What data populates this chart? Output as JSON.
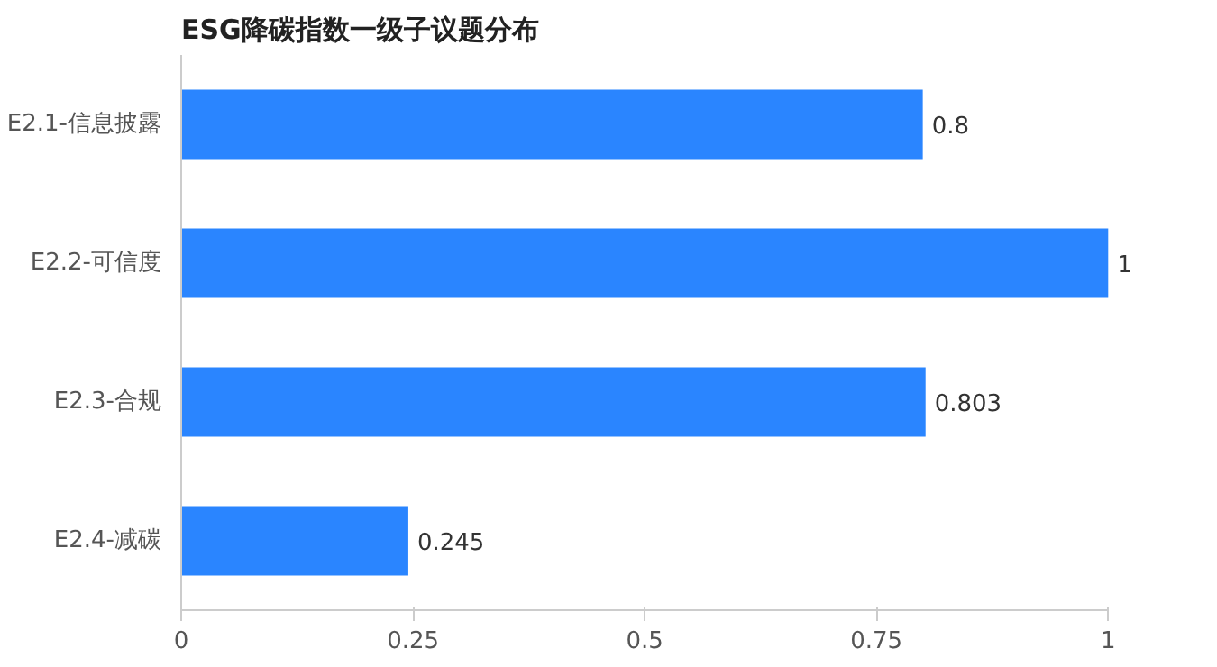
{
  "chart_data": {
    "type": "bar",
    "orientation": "horizontal",
    "title": "ESG降碳指数一级子议题分布",
    "categories": [
      "E2.1-信息披露",
      "E2.2-可信度",
      "E2.3-合规",
      "E2.4-减碳"
    ],
    "values": [
      0.8,
      1,
      0.803,
      0.245
    ],
    "color": "#2a85ff",
    "xlim": [
      0,
      1
    ],
    "xticks": [
      0,
      0.25,
      0.5,
      0.75,
      1
    ],
    "grid": false,
    "data_labels": true
  }
}
